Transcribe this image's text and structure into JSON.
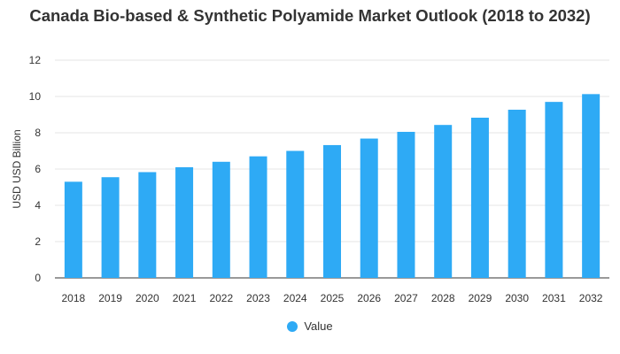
{
  "chart_data": {
    "type": "bar",
    "title": "Canada Bio-based & Synthetic Polyamide Market Outlook (2018 to 2032)",
    "xlabel": "",
    "ylabel": "USD USD Billion",
    "categories": [
      "2018",
      "2019",
      "2020",
      "2021",
      "2022",
      "2023",
      "2024",
      "2025",
      "2026",
      "2027",
      "2028",
      "2029",
      "2030",
      "2031",
      "2032"
    ],
    "series": [
      {
        "name": "Value",
        "values": [
          5.3,
          5.55,
          5.83,
          6.1,
          6.4,
          6.7,
          7.0,
          7.32,
          7.68,
          8.05,
          8.43,
          8.83,
          9.27,
          9.7,
          10.13
        ],
        "color": "#2eaaf5"
      }
    ],
    "ylim": [
      0,
      12
    ],
    "yticks": [
      "0",
      "2",
      "4",
      "6",
      "8",
      "10",
      "12"
    ],
    "grid": true,
    "legend_position": "bottom"
  }
}
